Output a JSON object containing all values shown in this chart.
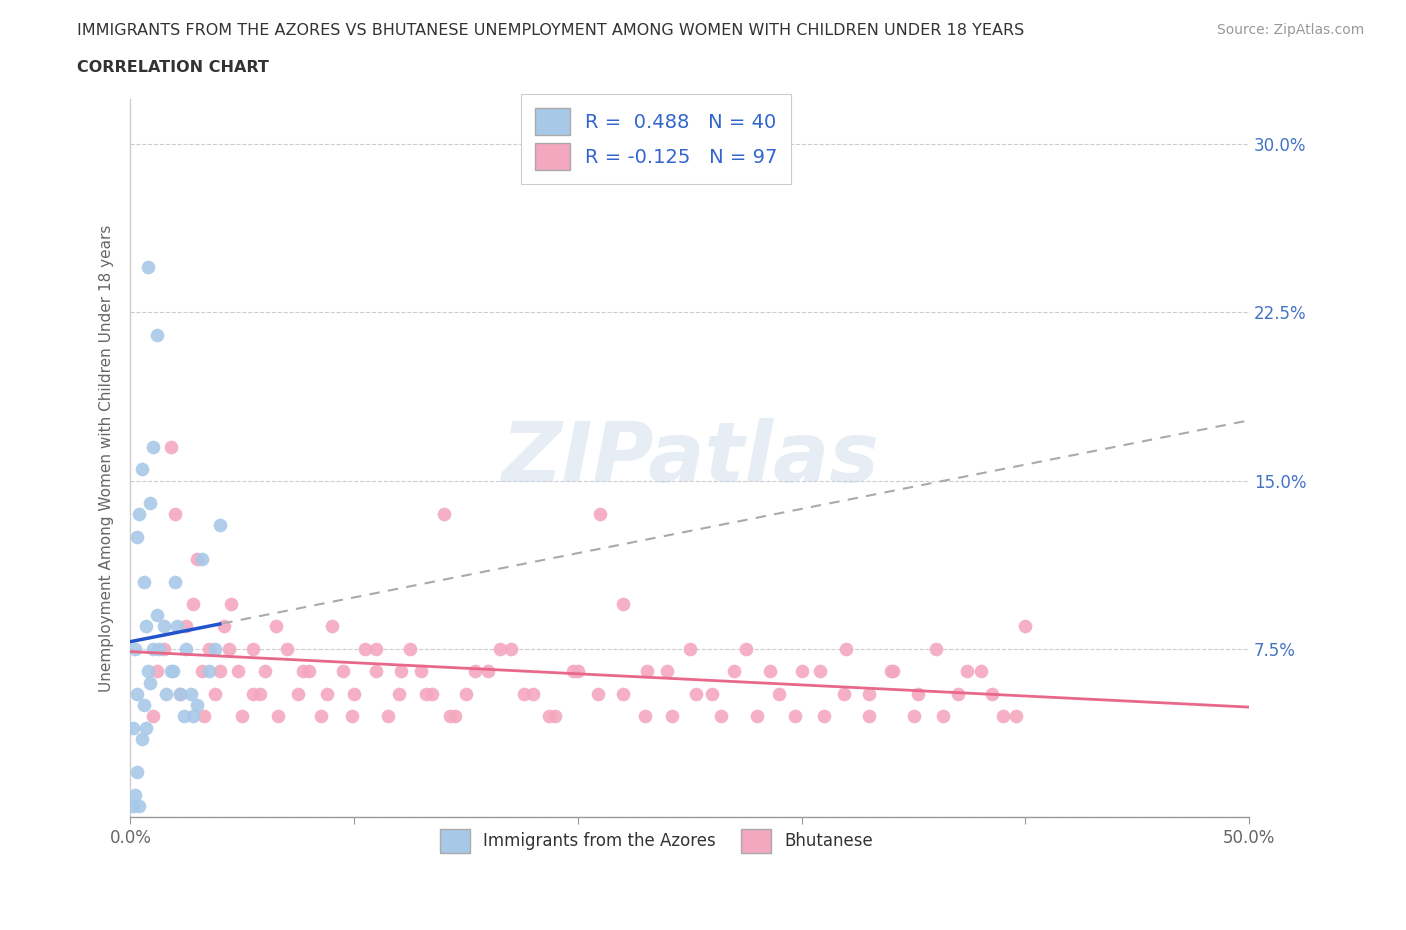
{
  "title": "IMMIGRANTS FROM THE AZORES VS BHUTANESE UNEMPLOYMENT AMONG WOMEN WITH CHILDREN UNDER 18 YEARS",
  "subtitle": "CORRELATION CHART",
  "source": "Source: ZipAtlas.com",
  "ylabel": "Unemployment Among Women with Children Under 18 years",
  "xlim": [
    0,
    0.5
  ],
  "ylim": [
    0,
    0.32
  ],
  "xticks": [
    0.0,
    0.1,
    0.2,
    0.3,
    0.4,
    0.5
  ],
  "xticklabels_shown": [
    "0.0%",
    "",
    "",
    "",
    "",
    "50.0%"
  ],
  "yticks": [
    0.0,
    0.075,
    0.15,
    0.225,
    0.3
  ],
  "yticklabels_right": [
    "",
    "7.5%",
    "15.0%",
    "22.5%",
    "30.0%"
  ],
  "watermark": "ZIPatlas",
  "legend_labels": [
    "Immigrants from the Azores",
    "Bhutanese"
  ],
  "azores_R": 0.488,
  "azores_N": 40,
  "bhutanese_R": -0.125,
  "bhutanese_N": 97,
  "azores_color": "#a8c8e8",
  "bhutanese_color": "#f4a8c0",
  "azores_trend_color": "#2255cc",
  "bhutanese_trend_color": "#e8688a",
  "azores_scatter": [
    [
      0.001,
      0.005
    ],
    [
      0.002,
      0.01
    ],
    [
      0.003,
      0.02
    ],
    [
      0.004,
      0.005
    ],
    [
      0.005,
      0.035
    ],
    [
      0.006,
      0.05
    ],
    [
      0.007,
      0.04
    ],
    [
      0.008,
      0.065
    ],
    [
      0.009,
      0.06
    ],
    [
      0.01,
      0.075
    ],
    [
      0.012,
      0.09
    ],
    [
      0.015,
      0.085
    ],
    [
      0.018,
      0.065
    ],
    [
      0.02,
      0.105
    ],
    [
      0.022,
      0.055
    ],
    [
      0.025,
      0.075
    ],
    [
      0.028,
      0.045
    ],
    [
      0.03,
      0.05
    ],
    [
      0.032,
      0.115
    ],
    [
      0.035,
      0.065
    ],
    [
      0.038,
      0.075
    ],
    [
      0.04,
      0.13
    ],
    [
      0.005,
      0.155
    ],
    [
      0.01,
      0.165
    ],
    [
      0.012,
      0.215
    ],
    [
      0.003,
      0.125
    ],
    [
      0.004,
      0.135
    ],
    [
      0.006,
      0.105
    ],
    [
      0.007,
      0.085
    ],
    [
      0.009,
      0.14
    ],
    [
      0.008,
      0.245
    ],
    [
      0.013,
      0.075
    ],
    [
      0.016,
      0.055
    ],
    [
      0.019,
      0.065
    ],
    [
      0.021,
      0.085
    ],
    [
      0.024,
      0.045
    ],
    [
      0.027,
      0.055
    ],
    [
      0.002,
      0.075
    ],
    [
      0.003,
      0.055
    ],
    [
      0.001,
      0.04
    ]
  ],
  "bhutanese_scatter": [
    [
      0.015,
      0.075
    ],
    [
      0.018,
      0.165
    ],
    [
      0.02,
      0.135
    ],
    [
      0.025,
      0.085
    ],
    [
      0.028,
      0.095
    ],
    [
      0.03,
      0.115
    ],
    [
      0.032,
      0.065
    ],
    [
      0.035,
      0.075
    ],
    [
      0.038,
      0.055
    ],
    [
      0.04,
      0.065
    ],
    [
      0.042,
      0.085
    ],
    [
      0.045,
      0.095
    ],
    [
      0.048,
      0.065
    ],
    [
      0.05,
      0.045
    ],
    [
      0.055,
      0.075
    ],
    [
      0.058,
      0.055
    ],
    [
      0.06,
      0.065
    ],
    [
      0.065,
      0.085
    ],
    [
      0.07,
      0.075
    ],
    [
      0.075,
      0.055
    ],
    [
      0.08,
      0.065
    ],
    [
      0.085,
      0.045
    ],
    [
      0.09,
      0.085
    ],
    [
      0.095,
      0.065
    ],
    [
      0.1,
      0.055
    ],
    [
      0.105,
      0.075
    ],
    [
      0.11,
      0.065
    ],
    [
      0.115,
      0.045
    ],
    [
      0.12,
      0.055
    ],
    [
      0.125,
      0.075
    ],
    [
      0.13,
      0.065
    ],
    [
      0.135,
      0.055
    ],
    [
      0.14,
      0.135
    ],
    [
      0.145,
      0.045
    ],
    [
      0.15,
      0.055
    ],
    [
      0.16,
      0.065
    ],
    [
      0.17,
      0.075
    ],
    [
      0.18,
      0.055
    ],
    [
      0.19,
      0.045
    ],
    [
      0.2,
      0.065
    ],
    [
      0.21,
      0.135
    ],
    [
      0.22,
      0.055
    ],
    [
      0.23,
      0.045
    ],
    [
      0.24,
      0.065
    ],
    [
      0.25,
      0.075
    ],
    [
      0.26,
      0.055
    ],
    [
      0.27,
      0.065
    ],
    [
      0.28,
      0.045
    ],
    [
      0.29,
      0.055
    ],
    [
      0.3,
      0.065
    ],
    [
      0.31,
      0.045
    ],
    [
      0.32,
      0.075
    ],
    [
      0.33,
      0.055
    ],
    [
      0.34,
      0.065
    ],
    [
      0.35,
      0.045
    ],
    [
      0.36,
      0.075
    ],
    [
      0.37,
      0.055
    ],
    [
      0.38,
      0.065
    ],
    [
      0.39,
      0.045
    ],
    [
      0.4,
      0.085
    ],
    [
      0.01,
      0.045
    ],
    [
      0.012,
      0.065
    ],
    [
      0.022,
      0.055
    ],
    [
      0.033,
      0.045
    ],
    [
      0.044,
      0.075
    ],
    [
      0.055,
      0.055
    ],
    [
      0.066,
      0.045
    ],
    [
      0.077,
      0.065
    ],
    [
      0.088,
      0.055
    ],
    [
      0.099,
      0.045
    ],
    [
      0.11,
      0.075
    ],
    [
      0.121,
      0.065
    ],
    [
      0.132,
      0.055
    ],
    [
      0.143,
      0.045
    ],
    [
      0.154,
      0.065
    ],
    [
      0.165,
      0.075
    ],
    [
      0.176,
      0.055
    ],
    [
      0.187,
      0.045
    ],
    [
      0.198,
      0.065
    ],
    [
      0.209,
      0.055
    ],
    [
      0.22,
      0.095
    ],
    [
      0.231,
      0.065
    ],
    [
      0.242,
      0.045
    ],
    [
      0.253,
      0.055
    ],
    [
      0.264,
      0.045
    ],
    [
      0.275,
      0.075
    ],
    [
      0.286,
      0.065
    ],
    [
      0.297,
      0.045
    ],
    [
      0.308,
      0.065
    ],
    [
      0.319,
      0.055
    ],
    [
      0.33,
      0.045
    ],
    [
      0.341,
      0.065
    ],
    [
      0.352,
      0.055
    ],
    [
      0.363,
      0.045
    ],
    [
      0.374,
      0.065
    ],
    [
      0.385,
      0.055
    ],
    [
      0.396,
      0.045
    ]
  ],
  "azores_trend": [
    0.0,
    0.04,
    0.06,
    0.14
  ],
  "bhutanese_trend": [
    0.0,
    0.5,
    0.08,
    0.05
  ]
}
